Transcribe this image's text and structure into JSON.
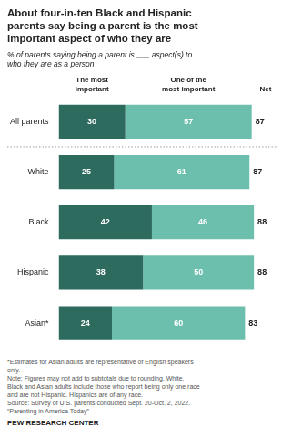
{
  "chart_data": {
    "type": "bar",
    "orientation": "horizontal",
    "stacked": true,
    "title": "About four-in-ten Black and Hispanic\nparents say being a parent is the most\nimportant aspect of who they are",
    "subtitle": "% of parents saying being a parent is ___ aspect(s) to\nwho they are as a person",
    "categories": [
      "All parents",
      "White",
      "Black",
      "Hispanic",
      "Asian*"
    ],
    "series": [
      {
        "name": "The most\nimportant",
        "color": "#2d6b5e",
        "values": [
          30,
          25,
          42,
          38,
          24
        ]
      },
      {
        "name": "One of the\nmost important",
        "color": "#6dbfad",
        "values": [
          57,
          61,
          46,
          50,
          60
        ]
      }
    ],
    "net_label": "Net",
    "net": [
      87,
      87,
      88,
      88,
      83
    ],
    "xlim": [
      0,
      90
    ],
    "grid": false,
    "data_labels": true,
    "tick_labels": "y",
    "footnote": "*Estimates for Asian adults are representative of English speakers\nonly.\nNote: Figures may not add to subtotals due to rounding. White,\nBlack and Asian adults include those who report being only one race\nand are not Hispanic. Hispanics are of any race.\nSource: Survey of U.S. parents conducted Sept. 20-Oct. 2, 2022.\n“Parenting in America Today”",
    "source": "PEW RESEARCH CENTER"
  }
}
